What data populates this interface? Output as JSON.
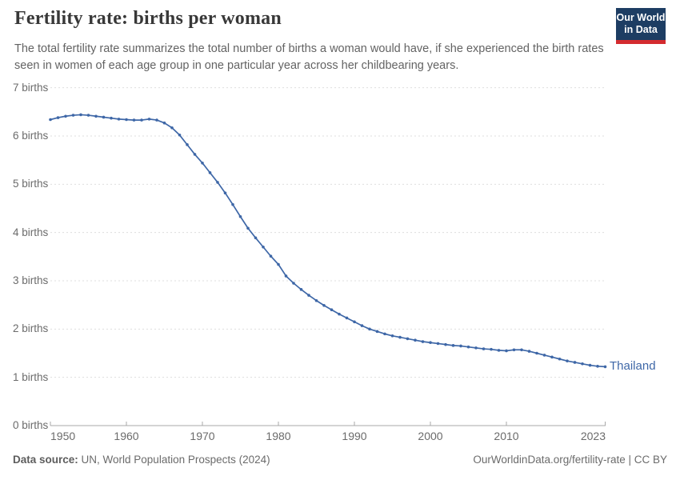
{
  "header": {
    "title": "Fertility rate: births per woman",
    "subtitle": "The total fertility rate summarizes the total number of births a woman would have, if she experienced the birth rates seen in women of each age group in one particular year across her childbearing years.",
    "logo": {
      "line1": "Our World",
      "line2": "in Data"
    }
  },
  "chart_data": {
    "type": "line",
    "title": "Fertility rate: births per woman",
    "xlabel": "",
    "ylabel": "",
    "xlim": [
      1950,
      2023
    ],
    "ylim": [
      0,
      7
    ],
    "grid": "horizontal-dashed",
    "legend_position": "line-end-label",
    "end_label": "Thailand",
    "y_ticks": [
      {
        "value": 0,
        "label": "0 births"
      },
      {
        "value": 1,
        "label": "1 births"
      },
      {
        "value": 2,
        "label": "2 births"
      },
      {
        "value": 3,
        "label": "3 births"
      },
      {
        "value": 4,
        "label": "4 births"
      },
      {
        "value": 5,
        "label": "5 births"
      },
      {
        "value": 6,
        "label": "6 births"
      },
      {
        "value": 7,
        "label": "7 births"
      }
    ],
    "x_ticks": [
      {
        "value": 1950,
        "label": "1950"
      },
      {
        "value": 1960,
        "label": "1960"
      },
      {
        "value": 1970,
        "label": "1970"
      },
      {
        "value": 1980,
        "label": "1980"
      },
      {
        "value": 1990,
        "label": "1990"
      },
      {
        "value": 2000,
        "label": "2000"
      },
      {
        "value": 2010,
        "label": "2010"
      },
      {
        "value": 2023,
        "label": "2023"
      }
    ],
    "x": [
      1950,
      1951,
      1952,
      1953,
      1954,
      1955,
      1956,
      1957,
      1958,
      1959,
      1960,
      1961,
      1962,
      1963,
      1964,
      1965,
      1966,
      1967,
      1968,
      1969,
      1970,
      1971,
      1972,
      1973,
      1974,
      1975,
      1976,
      1977,
      1978,
      1979,
      1980,
      1981,
      1982,
      1983,
      1984,
      1985,
      1986,
      1987,
      1988,
      1989,
      1990,
      1991,
      1992,
      1993,
      1994,
      1995,
      1996,
      1997,
      1998,
      1999,
      2000,
      2001,
      2002,
      2003,
      2004,
      2005,
      2006,
      2007,
      2008,
      2009,
      2010,
      2011,
      2012,
      2013,
      2014,
      2015,
      2016,
      2017,
      2018,
      2019,
      2020,
      2021,
      2022,
      2023
    ],
    "series": [
      {
        "name": "Thailand",
        "color": "#3e67a7",
        "values": [
          6.34,
          6.38,
          6.41,
          6.43,
          6.44,
          6.43,
          6.41,
          6.39,
          6.37,
          6.35,
          6.34,
          6.33,
          6.33,
          6.35,
          6.33,
          6.27,
          6.17,
          6.02,
          5.82,
          5.62,
          5.44,
          5.24,
          5.04,
          4.82,
          4.58,
          4.33,
          4.09,
          3.89,
          3.7,
          3.51,
          3.34,
          3.1,
          2.95,
          2.82,
          2.7,
          2.59,
          2.49,
          2.4,
          2.31,
          2.23,
          2.15,
          2.07,
          2.0,
          1.95,
          1.9,
          1.86,
          1.83,
          1.8,
          1.77,
          1.74,
          1.72,
          1.7,
          1.68,
          1.66,
          1.65,
          1.63,
          1.61,
          1.59,
          1.58,
          1.56,
          1.55,
          1.57,
          1.57,
          1.54,
          1.5,
          1.46,
          1.42,
          1.38,
          1.34,
          1.31,
          1.28,
          1.25,
          1.23,
          1.22
        ]
      }
    ]
  },
  "footer": {
    "source_label": "Data source:",
    "source_text": " UN, World Population Prospects (2024)",
    "attribution": "OurWorldinData.org/fertility-rate | CC BY"
  },
  "colors": {
    "accent_line": "#3e67a7",
    "logo_navy": "#1d3d63",
    "logo_red": "#d42b2f",
    "grid": "#dedede",
    "axis": "#a8a8a8",
    "muted_text": "#6b6b6b"
  }
}
